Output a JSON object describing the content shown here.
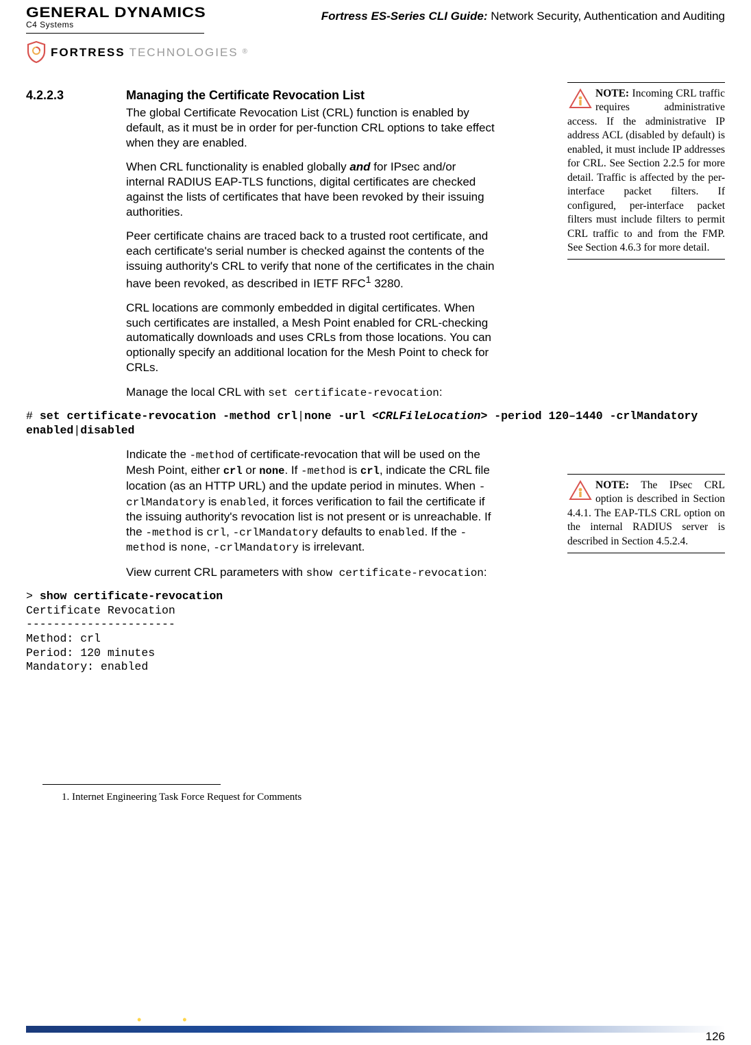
{
  "header": {
    "company_line1": "GENERAL DYNAMICS",
    "company_line2": "C4 Systems",
    "brand1": "FORTRESS",
    "brand2": "TECHNOLOGIES",
    "guide_bold": "Fortress ES-Series CLI Guide:",
    "guide_rest": " Network Security, Authentication and Auditing"
  },
  "section": {
    "num": "4.2.2.3",
    "title": "Managing the Certificate Revocation List"
  },
  "p1": "The global Certificate Revocation List (CRL) function is enabled by default, as it must be in order for per-function CRL options to take effect when they are enabled.",
  "p2a": "When CRL functionality is enabled globally ",
  "p2_and": "and",
  "p2b": " for IPsec and/or internal RADIUS EAP-TLS functions, digital certificates are checked against the lists of certificates that have been revoked by their issuing authorities.",
  "p3a": "Peer certificate chains are traced back to a trusted root certificate, and each certificate's serial number is checked against the contents of the issuing authority's CRL to verify that none of the certificates in the chain have been revoked, as described in IETF RFC",
  "p3sup": "1",
  "p3b": " 3280.",
  "p4": "CRL locations are commonly embedded in digital certificates. When such certificates are installed, a Mesh Point enabled for CRL-checking automatically downloads and uses CRLs from those locations. You can optionally specify an additional location for the Mesh Point to check for CRLs.",
  "p5a": "Manage the local CRL with ",
  "p5code": "set certificate-revocation",
  "p5b": ":",
  "cmd1": {
    "prompt": "# ",
    "part1": "set certificate-revocation -method crl",
    "pipe1": "|",
    "part2": "none -url ",
    "url": "<CRLFileLocation>",
    "part3": " -period 120–1440 -crlMandatory enabled",
    "pipe2": "|",
    "part4": "disabled"
  },
  "p6_parts": [
    {
      "t": "Indicate the "
    },
    {
      "t": "-method",
      "c": "mono-sm"
    },
    {
      "t": " of certificate-revocation that will be used on the Mesh Point, either "
    },
    {
      "t": "crl",
      "c": "mono-sm",
      "b": true
    },
    {
      "t": " or "
    },
    {
      "t": "none",
      "c": "mono-sm",
      "b": true
    },
    {
      "t": ". If "
    },
    {
      "t": "-method",
      "c": "mono-sm"
    },
    {
      "t": " is "
    },
    {
      "t": "crl",
      "c": "mono-sm",
      "b": true
    },
    {
      "t": ", indicate the CRL file location (as an HTTP URL) and the update period in minutes. When "
    },
    {
      "t": "-crlMandatory",
      "c": "mono"
    },
    {
      "t": " is "
    },
    {
      "t": "enabled",
      "c": "mono"
    },
    {
      "t": ", it forces verification to fail the certificate if the issuing authority's revocation list is not present or is unreachable. If the "
    },
    {
      "t": "-method",
      "c": "mono"
    },
    {
      "t": " is "
    },
    {
      "t": "crl",
      "c": "mono"
    },
    {
      "t": ", "
    },
    {
      "t": "-crlMandatory",
      "c": "mono"
    },
    {
      "t": " defaults to "
    },
    {
      "t": "enabled",
      "c": "mono"
    },
    {
      "t": ". If the "
    },
    {
      "t": "-method",
      "c": "mono"
    },
    {
      "t": " is "
    },
    {
      "t": "none",
      "c": "mono"
    },
    {
      "t": ", "
    },
    {
      "t": "-crlMandatory",
      "c": "mono"
    },
    {
      "t": " is irrelevant."
    }
  ],
  "p7a": "View current CRL parameters with ",
  "p7code": "show certificate-revocation",
  "p7b": ":",
  "cmd2": {
    "prompt": "> ",
    "cmd": "show certificate-revocation",
    "out": "Certificate Revocation\n----------------------\nMethod: crl\nPeriod: 120 minutes\nMandatory: enabled"
  },
  "note1": {
    "label": "NOTE:",
    "text": " Incoming CRL traffic requires administrative access. If the administrative IP address ACL (disabled by default) is enabled, it must include IP addresses for CRL. See Section 2.2.5 for more detail. Traffic is affected by the per-interface packet filters. If configured, per-interface packet filters must include filters to permit CRL traffic to and from the FMP. See Section 4.6.3 for more detail."
  },
  "note2": {
    "label": "NOTE:",
    "text": " The IPsec CRL option is described in Section 4.4.1. The EAP-TLS CRL option on the internal RADIUS server is described in Section 4.5.2.4."
  },
  "footnote": "1.  Internet Engineering Task Force Request for Comments",
  "page_num": "126",
  "colors": {
    "accent_red": "#d9534f",
    "accent_orange": "#f0ad4e",
    "bar_start": "#1a3a7a"
  }
}
